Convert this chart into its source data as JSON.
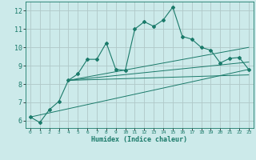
{
  "xlabel": "Humidex (Indice chaleur)",
  "bg_color": "#cceaea",
  "grid_color": "#b0c8c8",
  "line_color": "#1a7a6a",
  "xlim": [
    -0.5,
    23.5
  ],
  "ylim": [
    5.6,
    12.5
  ],
  "xticks": [
    0,
    1,
    2,
    3,
    4,
    5,
    6,
    7,
    8,
    9,
    10,
    11,
    12,
    13,
    14,
    15,
    16,
    17,
    18,
    19,
    20,
    21,
    22,
    23
  ],
  "yticks": [
    6,
    7,
    8,
    9,
    10,
    11,
    12
  ],
  "main_x": [
    0,
    1,
    2,
    3,
    4,
    5,
    6,
    7,
    8,
    9,
    10,
    11,
    12,
    13,
    14,
    15,
    16,
    17,
    18,
    19,
    20,
    21,
    22,
    23
  ],
  "main_y": [
    6.2,
    5.9,
    6.6,
    7.05,
    8.2,
    8.55,
    9.35,
    9.35,
    10.25,
    8.8,
    8.75,
    11.0,
    11.4,
    11.15,
    11.5,
    12.2,
    10.6,
    10.45,
    10.0,
    9.85,
    9.15,
    9.4,
    9.45,
    8.8
  ],
  "trend_lines": [
    {
      "x": [
        0,
        23
      ],
      "y": [
        6.2,
        8.8
      ]
    },
    {
      "x": [
        4,
        23
      ],
      "y": [
        8.2,
        10.0
      ]
    },
    {
      "x": [
        4,
        23
      ],
      "y": [
        8.2,
        8.5
      ]
    },
    {
      "x": [
        4,
        23
      ],
      "y": [
        8.2,
        9.2
      ]
    }
  ]
}
